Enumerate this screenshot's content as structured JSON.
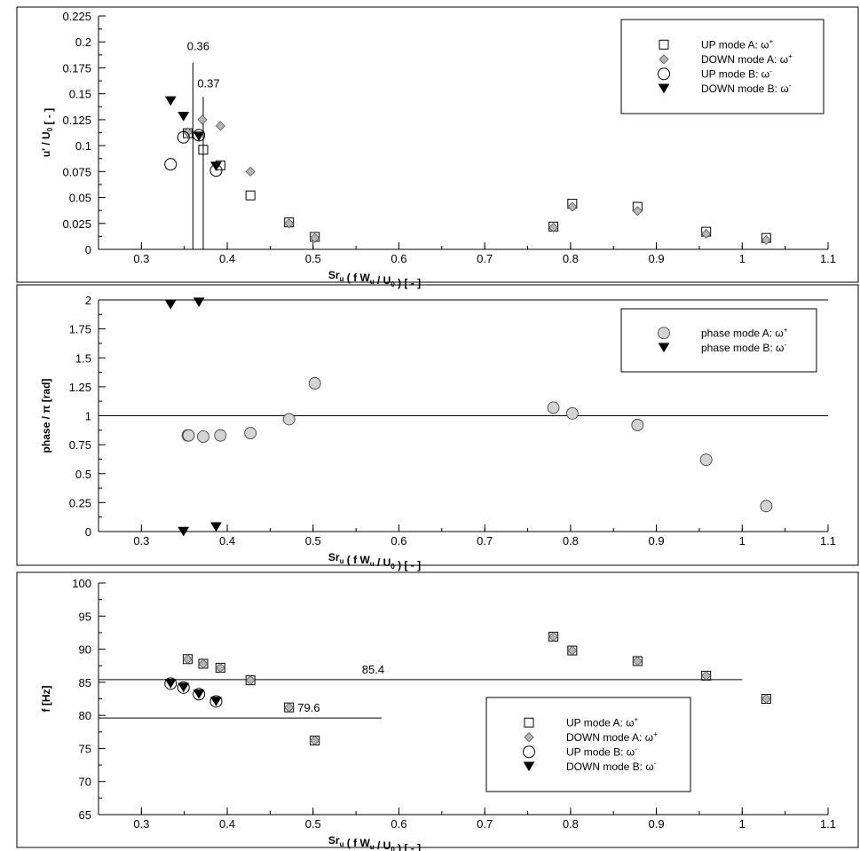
{
  "chart_data": [
    {
      "type": "scatter",
      "panel": "amplitude",
      "xlabel": "Sr_u ( f W_u / U_0 ) [-]",
      "ylabel": "u' / U_0 [-]",
      "xlim": [
        0.25,
        1.1
      ],
      "ylim": [
        0,
        0.225
      ],
      "xticks": [
        "0.3",
        "0.4",
        "0.5",
        "0.6",
        "0.7",
        "0.8",
        "0.9",
        "1",
        "1.1"
      ],
      "yticks": [
        "0",
        "0.025",
        "0.05",
        "0.075",
        "0.1",
        "0.125",
        "0.15",
        "0.175",
        "0.2",
        "0.225"
      ],
      "vlines": [
        {
          "x": 0.36,
          "label": "0.36",
          "y_top": 0.18,
          "label_y": 0.192
        },
        {
          "x": 0.372,
          "label": "0.37",
          "y_top": 0.147,
          "label_y": 0.156
        }
      ],
      "legend_position": "top-right",
      "series": [
        {
          "name": "UP mode A",
          "marker": "square",
          "sym": "+",
          "points": [
            [
              0.354,
              0.112
            ],
            [
              0.372,
              0.096
            ],
            [
              0.392,
              0.081
            ],
            [
              0.427,
              0.052
            ],
            [
              0.472,
              0.026
            ],
            [
              0.502,
              0.012
            ],
            [
              0.78,
              0.022
            ],
            [
              0.802,
              0.044
            ],
            [
              0.878,
              0.041
            ],
            [
              0.958,
              0.017
            ],
            [
              1.028,
              0.011
            ]
          ]
        },
        {
          "name": "DOWN mode A",
          "marker": "diamond",
          "sym": "+",
          "points": [
            [
              0.354,
              0.113
            ],
            [
              0.371,
              0.125
            ],
            [
              0.392,
              0.119
            ],
            [
              0.427,
              0.075
            ],
            [
              0.472,
              0.025
            ],
            [
              0.502,
              0.011
            ],
            [
              0.78,
              0.021
            ],
            [
              0.802,
              0.041
            ],
            [
              0.878,
              0.037
            ],
            [
              0.958,
              0.015
            ],
            [
              1.028,
              0.009
            ]
          ]
        },
        {
          "name": "UP mode B",
          "marker": "circle",
          "sym": "-",
          "points": [
            [
              0.334,
              0.082
            ],
            [
              0.349,
              0.108
            ],
            [
              0.367,
              0.11
            ],
            [
              0.387,
              0.076
            ]
          ]
        },
        {
          "name": "DOWN mode B",
          "marker": "triangle",
          "sym": "-",
          "points": [
            [
              0.334,
              0.143
            ],
            [
              0.349,
              0.128
            ],
            [
              0.367,
              0.109
            ],
            [
              0.387,
              0.08
            ]
          ]
        }
      ]
    },
    {
      "type": "scatter",
      "panel": "phase",
      "xlabel": "Sr_u ( f W_u / U_0 ) [-]",
      "ylabel": "phase / π [rad]",
      "xlim": [
        0.25,
        1.1
      ],
      "ylim": [
        0,
        2
      ],
      "xticks": [
        "0.3",
        "0.4",
        "0.5",
        "0.6",
        "0.7",
        "0.8",
        "0.9",
        "1",
        "1.1"
      ],
      "yticks": [
        "0",
        "0.25",
        "0.5",
        "0.75",
        "1",
        "1.25",
        "1.5",
        "1.75",
        "2"
      ],
      "hlines": [
        {
          "y": 1
        },
        {
          "y": 2
        }
      ],
      "legend_position": "top-right",
      "series": [
        {
          "name": "phase mode A",
          "marker": "circle-gray",
          "sym": "+",
          "points": [
            [
              0.354,
              0.83
            ],
            [
              0.355,
              0.83
            ],
            [
              0.372,
              0.82
            ],
            [
              0.392,
              0.83
            ],
            [
              0.427,
              0.85
            ],
            [
              0.472,
              0.97
            ],
            [
              0.502,
              1.28
            ],
            [
              0.78,
              1.07
            ],
            [
              0.802,
              1.02
            ],
            [
              0.878,
              0.92
            ],
            [
              0.958,
              0.62
            ],
            [
              1.028,
              0.22
            ]
          ]
        },
        {
          "name": "phase mode B",
          "marker": "triangle",
          "sym": "-",
          "points": [
            [
              0.334,
              1.96
            ],
            [
              0.367,
              1.98
            ],
            [
              0.349,
              0.0
            ],
            [
              0.387,
              0.04
            ]
          ]
        }
      ]
    },
    {
      "type": "scatter",
      "panel": "frequency",
      "xlabel": "Sr_u ( f W_u / U_0 ) [-]",
      "ylabel": "f [Hz]",
      "xlim": [
        0.25,
        1.1
      ],
      "ylim": [
        65,
        100
      ],
      "xticks": [
        "0.3",
        "0.4",
        "0.5",
        "0.6",
        "0.7",
        "0.8",
        "0.9",
        "1",
        "1.1"
      ],
      "yticks": [
        "65",
        "70",
        "75",
        "80",
        "85",
        "90",
        "95",
        "100"
      ],
      "hlines": [
        {
          "y": 85.4,
          "x_end": 1.0,
          "label": "85.4",
          "label_x": 0.57
        },
        {
          "y": 79.6,
          "x_end": 0.58,
          "label": "79.6",
          "label_x": 0.495
        }
      ],
      "legend_position": "bottom-center",
      "series": [
        {
          "name": "UP mode A",
          "marker": "square",
          "sym": "+",
          "points": [
            [
              0.354,
              88.5
            ],
            [
              0.372,
              87.8
            ],
            [
              0.392,
              87.2
            ],
            [
              0.427,
              85.3
            ],
            [
              0.472,
              81.2
            ],
            [
              0.502,
              76.2
            ],
            [
              0.78,
              91.9
            ],
            [
              0.802,
              89.8
            ],
            [
              0.878,
              88.2
            ],
            [
              0.958,
              86
            ],
            [
              1.028,
              82.5
            ]
          ]
        },
        {
          "name": "DOWN mode A",
          "marker": "diamond",
          "sym": "+",
          "points": [
            [
              0.354,
              88.5
            ],
            [
              0.372,
              87.8
            ],
            [
              0.392,
              87.2
            ],
            [
              0.427,
              85.3
            ],
            [
              0.472,
              81.2
            ],
            [
              0.502,
              76.2
            ],
            [
              0.78,
              91.9
            ],
            [
              0.802,
              89.8
            ],
            [
              0.878,
              88.2
            ],
            [
              0.958,
              86
            ],
            [
              1.028,
              82.5
            ]
          ]
        },
        {
          "name": "UP mode B",
          "marker": "circle",
          "sym": "-",
          "points": [
            [
              0.334,
              84.8
            ],
            [
              0.349,
              84.2
            ],
            [
              0.367,
              83.2
            ],
            [
              0.387,
              82.1
            ]
          ]
        },
        {
          "name": "DOWN mode B",
          "marker": "triangle",
          "sym": "-",
          "points": [
            [
              0.334,
              84.8
            ],
            [
              0.349,
              84.2
            ],
            [
              0.367,
              83.2
            ],
            [
              0.387,
              82.1
            ]
          ]
        }
      ]
    }
  ]
}
